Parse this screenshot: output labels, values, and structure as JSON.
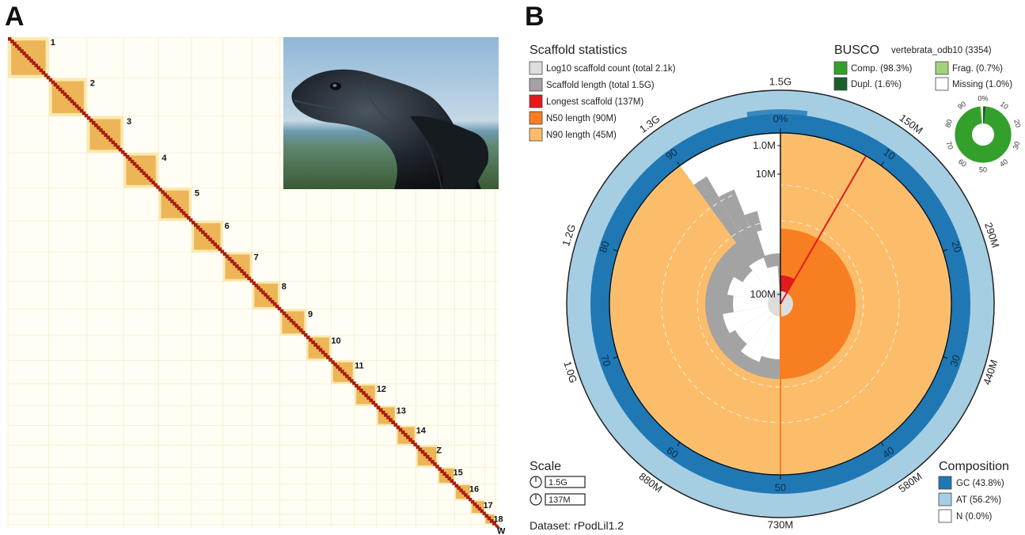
{
  "panel_a": {
    "letter": "A",
    "chromosome_labels": [
      "1",
      "2",
      "3",
      "4",
      "5",
      "6",
      "7",
      "8",
      "9",
      "10",
      "11",
      "12",
      "13",
      "14",
      "Z",
      "15",
      "16",
      "17",
      "18",
      "W"
    ],
    "chromosome_sizes": [
      5.6,
      5.2,
      5.0,
      4.8,
      4.5,
      4.3,
      4.0,
      3.8,
      3.6,
      3.4,
      3.2,
      3.0,
      2.7,
      2.7,
      3.0,
      2.3,
      2.2,
      1.9,
      1.4,
      0.5
    ],
    "heatmap_colors": {
      "background": "#fffdf4",
      "low": "#fbe7a9",
      "mid": "#e8a33a",
      "high": "#a81d10"
    },
    "photo_icon": "lizard-photo"
  },
  "panel_b": {
    "letter": "B",
    "scaffold_stats": {
      "title": "Scaffold statistics",
      "items": [
        {
          "label": "Log10 scaffold count (total 2.1k)",
          "color": "#dddddd"
        },
        {
          "label": "Scaffold length (total 1.5G)",
          "color": "#a3a3a3"
        },
        {
          "label": "Longest scaffold (137M)",
          "color": "#e31a1c"
        },
        {
          "label": "N50 length (90M)",
          "color": "#f77f22"
        },
        {
          "label": "N90 length (45M)",
          "color": "#fcbd6b"
        }
      ]
    },
    "busco": {
      "title": "BUSCO",
      "lineage": "vertebrata_odb10 (3354)",
      "items": [
        {
          "label": "Comp. (98.3%)",
          "color": "#33a02c"
        },
        {
          "label": "Frag. (0.7%)",
          "color": "#a3d27b"
        },
        {
          "label": "Dupl. (1.6%)",
          "color": "#1a5e2e"
        },
        {
          "label": "Missing (1.0%)",
          "color": "#ffffff"
        }
      ],
      "ring_ticks": [
        "0%",
        "10",
        "20",
        "30",
        "40",
        "50",
        "60",
        "70",
        "80",
        "90"
      ],
      "complete_pct": 98.3,
      "duplicated_pct": 1.6,
      "fragmented_pct": 0.7,
      "missing_pct": 1.0
    },
    "composition": {
      "title": "Composition",
      "items": [
        {
          "label": "GC (43.8%)",
          "color": "#1f78b4"
        },
        {
          "label": "AT (56.2%)",
          "color": "#a6cee3"
        },
        {
          "label": "N (0.0%)",
          "color": "#ffffff"
        }
      ]
    },
    "scale": {
      "title": "Scale",
      "items": [
        "1.5G",
        "137M"
      ]
    },
    "dataset": "Dataset: rPodLil1.2",
    "snail": {
      "percent_ticks": [
        "0%",
        "10",
        "20",
        "30",
        "40",
        "50",
        "60",
        "70",
        "80",
        "90"
      ],
      "length_ticks": [
        "150M",
        "290M",
        "440M",
        "580M",
        "730M",
        "880M",
        "1.0G",
        "1.2G",
        "1.3G",
        "1.5G"
      ],
      "radial_labels": [
        "1.0M",
        "10M",
        "100M"
      ],
      "longest_scaffold_mb": 137,
      "n50_mb": 90,
      "n90_mb": 45,
      "n50_percent": 50,
      "n90_percent": 90,
      "total_length_g": 1.5
    }
  }
}
